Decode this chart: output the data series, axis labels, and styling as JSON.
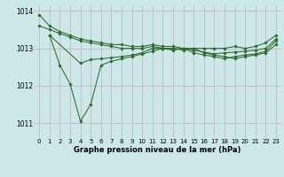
{
  "bg_color": "#cce8e8",
  "grid_color_major": "#b8b8c8",
  "grid_color_minor": "#dde8e8",
  "line_color": "#2d6a2d",
  "xlabel": "Graphe pression niveau de la mer (hPa)",
  "ylim": [
    1010.6,
    1014.15
  ],
  "xlim": [
    -0.5,
    23.5
  ],
  "yticks": [
    1011,
    1012,
    1013,
    1014
  ],
  "xticks": [
    0,
    1,
    2,
    3,
    4,
    5,
    6,
    7,
    8,
    9,
    10,
    11,
    12,
    13,
    14,
    15,
    16,
    17,
    18,
    19,
    20,
    21,
    22,
    23
  ],
  "series": [
    {
      "x": [
        0,
        1,
        2,
        3,
        4,
        5,
        6,
        7,
        8,
        9,
        10,
        11,
        12,
        13,
        14,
        15,
        16,
        17,
        18,
        19,
        20,
        21,
        22,
        23
      ],
      "y": [
        1013.9,
        1013.6,
        1013.45,
        1013.35,
        1013.25,
        1013.2,
        1013.15,
        1013.1,
        1013.1,
        1013.05,
        1013.05,
        1013.1,
        1013.05,
        1013.05,
        1013.0,
        1013.0,
        1013.0,
        1013.0,
        1013.0,
        1013.05,
        1013.0,
        1013.05,
        1013.15,
        1013.35
      ]
    },
    {
      "x": [
        0,
        1,
        2,
        3,
        4,
        5,
        6,
        7,
        8,
        9,
        10,
        11,
        12,
        13,
        14,
        15,
        16,
        17,
        18,
        19,
        20,
        21,
        22,
        23
      ],
      "y": [
        1013.6,
        1013.5,
        1013.4,
        1013.3,
        1013.2,
        1013.15,
        1013.1,
        1013.05,
        1013.0,
        1013.0,
        1013.0,
        1013.05,
        1013.0,
        1012.98,
        1013.0,
        1012.95,
        1012.9,
        1012.85,
        1012.88,
        1012.9,
        1012.92,
        1012.95,
        1013.0,
        1013.25
      ]
    },
    {
      "x": [
        1,
        4,
        5,
        6,
        7,
        8,
        9,
        10,
        11,
        12,
        13,
        14,
        15,
        16,
        17,
        18,
        19,
        20,
        21,
        22,
        23
      ],
      "y": [
        1013.35,
        1012.6,
        1012.7,
        1012.72,
        1012.75,
        1012.78,
        1012.82,
        1012.88,
        1013.0,
        1013.0,
        1012.95,
        1013.0,
        1012.88,
        1012.82,
        1012.78,
        1012.72,
        1012.78,
        1012.82,
        1012.85,
        1012.92,
        1013.2
      ]
    },
    {
      "x": [
        1,
        2,
        3,
        4,
        5,
        6,
        7,
        8,
        9,
        10,
        11,
        12,
        13,
        14,
        15,
        16,
        17,
        18,
        19,
        20,
        21,
        22,
        23
      ],
      "y": [
        1013.35,
        1012.55,
        1012.05,
        1011.05,
        1011.5,
        1012.55,
        1012.65,
        1012.72,
        1012.78,
        1012.85,
        1012.92,
        1013.0,
        1013.0,
        1012.95,
        1013.0,
        1012.88,
        1012.82,
        1012.78,
        1012.72,
        1012.78,
        1012.82,
        1012.88,
        1013.1
      ]
    }
  ],
  "xlabel_fontsize": 6.0,
  "tick_fontsize": 5.0,
  "ytick_fontsize": 5.5,
  "marker_size": 1.8,
  "line_width": 0.75
}
